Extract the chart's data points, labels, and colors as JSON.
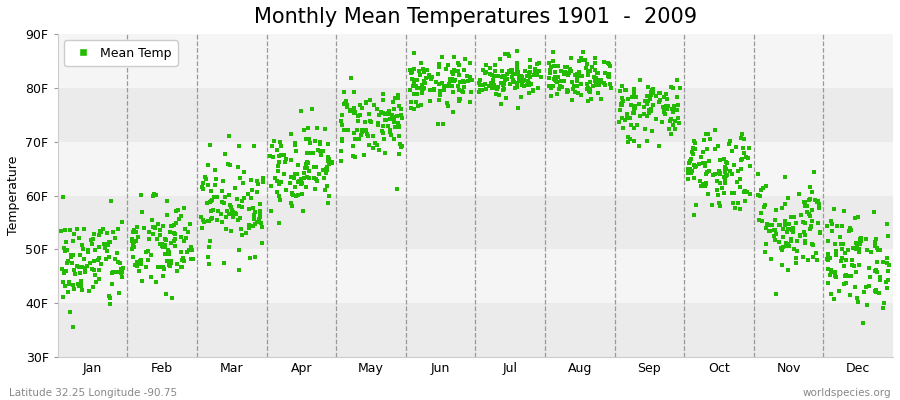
{
  "title": "Monthly Mean Temperatures 1901  -  2009",
  "ylabel": "Temperature",
  "ylim": [
    30,
    90
  ],
  "yticks": [
    30,
    40,
    50,
    60,
    70,
    80,
    90
  ],
  "ytick_labels": [
    "30F",
    "40F",
    "50F",
    "60F",
    "70F",
    "80F",
    "90F"
  ],
  "months": [
    "Jan",
    "Feb",
    "Mar",
    "Apr",
    "May",
    "Jun",
    "Jul",
    "Aug",
    "Sep",
    "Oct",
    "Nov",
    "Dec"
  ],
  "mean_temps_F": [
    47.5,
    50.5,
    58.5,
    65.5,
    73.5,
    80.5,
    82.0,
    81.5,
    76.0,
    65.0,
    54.5,
    48.0
  ],
  "std_temps_F": [
    4.5,
    4.5,
    4.5,
    4.0,
    3.5,
    2.5,
    2.0,
    2.0,
    3.0,
    4.0,
    4.5,
    4.5
  ],
  "n_years": 109,
  "marker_color": "#22bb00",
  "marker_size": 7,
  "bg_color": "#ffffff",
  "band_colors": [
    "#ebebeb",
    "#f5f5f5"
  ],
  "vline_color": "#999999",
  "title_fontsize": 15,
  "label_fontsize": 9,
  "tick_fontsize": 9,
  "footer_left": "Latitude 32.25 Longitude -90.75",
  "footer_right": "worldspecies.org",
  "legend_label": "Mean Temp"
}
